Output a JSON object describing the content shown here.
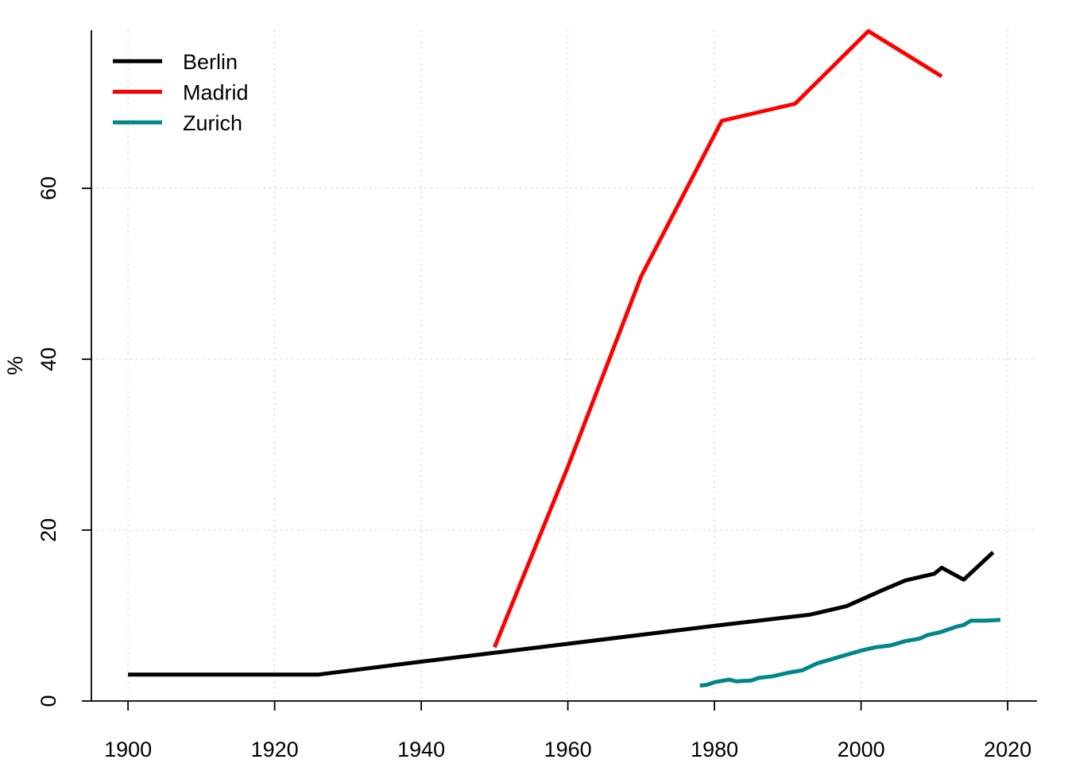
{
  "chart_data": {
    "type": "line",
    "title": "",
    "xlabel": "",
    "ylabel": "%",
    "xlim": [
      1895,
      2024
    ],
    "ylim": [
      0,
      78.5
    ],
    "x_ticks": [
      1900,
      1920,
      1940,
      1960,
      1980,
      2000,
      2020
    ],
    "y_ticks": [
      0,
      20,
      40,
      60
    ],
    "grid": true,
    "legend_position": "top-left",
    "series": [
      {
        "name": "Berlin",
        "color": "#000000",
        "points": [
          [
            1900,
            3.1
          ],
          [
            1926,
            3.1
          ],
          [
            1940,
            4.6
          ],
          [
            1960,
            6.7
          ],
          [
            1980,
            8.8
          ],
          [
            1993,
            10.1
          ],
          [
            1998,
            11.1
          ],
          [
            2003,
            13.0
          ],
          [
            2006,
            14.1
          ],
          [
            2010,
            14.9
          ],
          [
            2011,
            15.6
          ],
          [
            2014,
            14.2
          ],
          [
            2018,
            17.4
          ]
        ]
      },
      {
        "name": "Madrid",
        "color": "#ff0000",
        "points": [
          [
            1950,
            6.3
          ],
          [
            1960,
            27.4
          ],
          [
            1970,
            49.7
          ],
          [
            1981,
            67.9
          ],
          [
            1991,
            69.9
          ],
          [
            2001,
            78.4
          ],
          [
            2011,
            73.1
          ]
        ]
      },
      {
        "name": "Zurich",
        "color": "#00868b",
        "points": [
          [
            1978,
            1.8
          ],
          [
            1979,
            1.9
          ],
          [
            1980,
            2.2
          ],
          [
            1982,
            2.5
          ],
          [
            1983,
            2.3
          ],
          [
            1985,
            2.4
          ],
          [
            1986,
            2.7
          ],
          [
            1988,
            2.9
          ],
          [
            1990,
            3.3
          ],
          [
            1992,
            3.6
          ],
          [
            1994,
            4.4
          ],
          [
            1996,
            4.9
          ],
          [
            1998,
            5.4
          ],
          [
            2000,
            5.9
          ],
          [
            2002,
            6.3
          ],
          [
            2004,
            6.5
          ],
          [
            2006,
            7.0
          ],
          [
            2008,
            7.3
          ],
          [
            2009,
            7.7
          ],
          [
            2011,
            8.1
          ],
          [
            2013,
            8.7
          ],
          [
            2014,
            8.9
          ],
          [
            2015,
            9.4
          ],
          [
            2017,
            9.4
          ],
          [
            2019,
            9.5
          ]
        ]
      }
    ]
  }
}
